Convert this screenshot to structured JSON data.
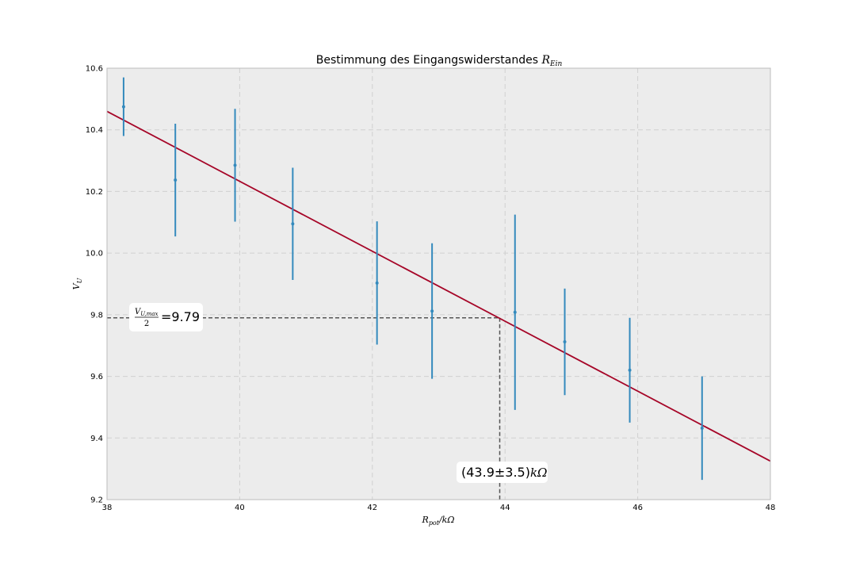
{
  "chart_data": {
    "type": "scatter",
    "title": "Bestimmung des Eingangswiderstandes R_Ein",
    "title_main": "Bestimmung des Eingangswiderstandes ",
    "title_math": "R",
    "title_math_sub": "Ein",
    "xlabel": "R_pot / kΩ",
    "xlabel_main": "R",
    "xlabel_sub": "pot",
    "xlabel_unit": "/kΩ",
    "ylabel": "V_U",
    "ylabel_main": "V",
    "ylabel_sub": "U",
    "xlim": [
      38,
      48
    ],
    "ylim": [
      9.2,
      10.6
    ],
    "xticks": [
      "38",
      "40",
      "42",
      "44",
      "46",
      "48"
    ],
    "yticks": [
      "9.2",
      "9.4",
      "9.6",
      "9.8",
      "10.0",
      "10.2",
      "10.4",
      "10.6"
    ],
    "grid": true,
    "series": [
      {
        "x": [
          38.25,
          39.03,
          39.93,
          40.8,
          42.07,
          42.9,
          44.15,
          44.9,
          45.88,
          46.97
        ],
        "y": [
          10.475,
          10.237,
          10.285,
          10.095,
          9.903,
          9.812,
          9.808,
          9.712,
          9.62,
          9.432
        ],
        "yerr": [
          0.095,
          0.183,
          0.183,
          0.182,
          0.2,
          0.22,
          0.317,
          0.173,
          0.17,
          0.168
        ],
        "color": "#348abd"
      }
    ],
    "fit_line": {
      "x": [
        38,
        48
      ],
      "y": [
        10.46,
        9.325
      ],
      "color": "#a60628"
    },
    "annotations": [
      {
        "text": "V_U,max / 2 = 9.79",
        "numerator": "V",
        "numerator_sub": "U,max",
        "denominator": "2",
        "value": "=9.79",
        "level": 9.79
      },
      {
        "text": "(43.9±3.5)kΩ",
        "value": "(43.9±3.5)",
        "unit": "kΩ",
        "x": 43.92
      }
    ],
    "colors": {
      "background": "#ececec",
      "grid": "#d0d0d0",
      "guide": "#555555",
      "data": "#348abd",
      "fit": "#a60628"
    }
  }
}
